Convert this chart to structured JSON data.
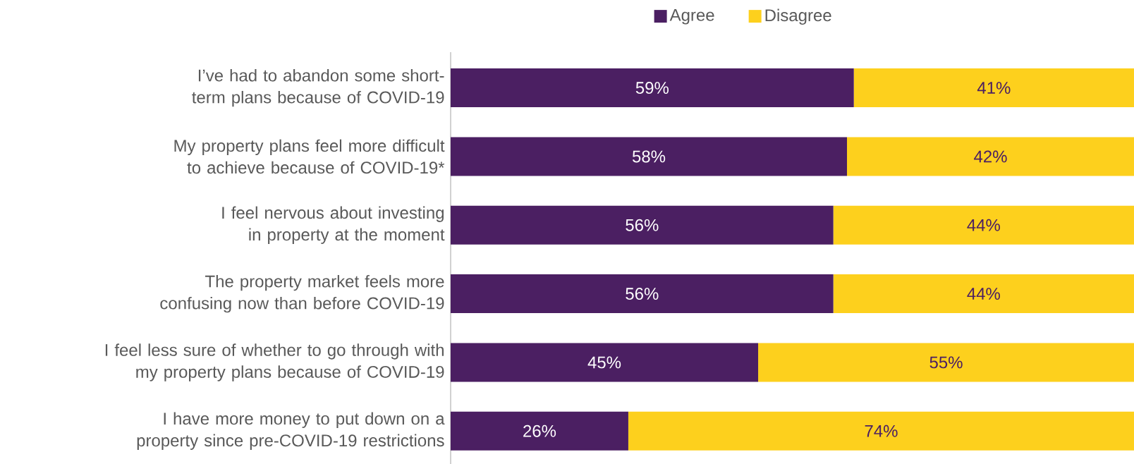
{
  "chart_data": {
    "type": "bar",
    "orientation": "horizontal",
    "stacked": true,
    "legend": "top",
    "categories": [
      "I’ve had to abandon some short-term plans because of COVID-19",
      "My property plans feel more difficult to achieve because of COVID-19*",
      "I feel nervous about investing in property at the moment",
      "The property market feels more confusing now than before COVID-19",
      "I feel less sure of whether to go through with my property plans because of COVID-19",
      "I have more money to put down on a property since pre-COVID-19 restrictions"
    ],
    "series": [
      {
        "name": "Agree",
        "color": "#4b1f62",
        "values": [
          59,
          58,
          56,
          56,
          45,
          26
        ],
        "value_labels": [
          "59%",
          "58%",
          "56%",
          "56%",
          "45%",
          "26%"
        ]
      },
      {
        "name": "Disagree",
        "color": "#fdd01d",
        "values": [
          41,
          42,
          44,
          44,
          55,
          74
        ],
        "value_labels": [
          "41%",
          "42%",
          "44%",
          "44%",
          "55%",
          "74%"
        ]
      }
    ]
  }
}
